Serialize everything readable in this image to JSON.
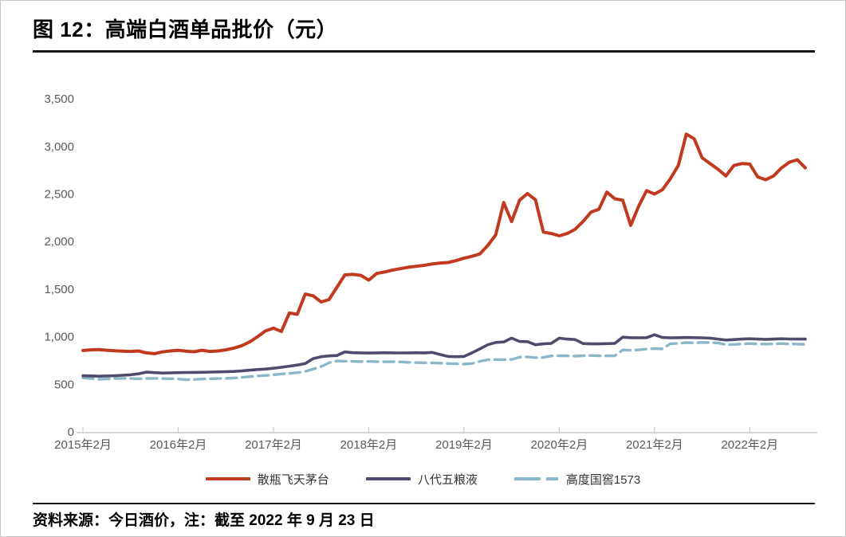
{
  "figure": {
    "title": "图 12：高端白酒单品批价（元）",
    "source_note": "资料来源：今日酒价，注：截至 2022 年 9 月 23 日"
  },
  "chart_data": {
    "type": "line",
    "title": "高端白酒单品批价（元）",
    "xlabel": "",
    "ylabel": "",
    "ylim": [
      0,
      3500
    ],
    "y_ticks": [
      0,
      500,
      1000,
      1500,
      2000,
      2500,
      3000,
      3500
    ],
    "x_tick_labels": [
      "2015年2月",
      "2016年2月",
      "2017年2月",
      "2018年2月",
      "2019年2月",
      "2020年2月",
      "2021年2月",
      "2022年2月"
    ],
    "x_start": "2015-02",
    "x_end": "2022-09",
    "x_frequency": "monthly",
    "grid": false,
    "legend_position": "bottom",
    "axis_text_color": "#595959",
    "axis_line_color": "#c9c9c9",
    "series": [
      {
        "name": "散瓶飞天茅台",
        "color": "#c13a20",
        "style": "solid",
        "values": [
          855,
          862,
          865,
          858,
          852,
          848,
          845,
          850,
          830,
          822,
          840,
          850,
          858,
          848,
          842,
          858,
          845,
          850,
          862,
          880,
          905,
          945,
          1000,
          1060,
          1090,
          1055,
          1250,
          1235,
          1448,
          1430,
          1365,
          1390,
          1520,
          1650,
          1655,
          1645,
          1595,
          1665,
          1680,
          1700,
          1715,
          1730,
          1740,
          1750,
          1765,
          1775,
          1780,
          1800,
          1825,
          1845,
          1870,
          1960,
          2070,
          2410,
          2210,
          2435,
          2505,
          2440,
          2100,
          2085,
          2060,
          2085,
          2130,
          2210,
          2310,
          2340,
          2520,
          2450,
          2435,
          2170,
          2370,
          2535,
          2500,
          2545,
          2660,
          2800,
          3130,
          3080,
          2880,
          2820,
          2760,
          2690,
          2800,
          2820,
          2815,
          2680,
          2650,
          2690,
          2775,
          2835,
          2860,
          2775
        ]
      },
      {
        "name": "八代五粮液",
        "color": "#4d4c6d",
        "style": "solid",
        "values": [
          590,
          588,
          585,
          587,
          590,
          595,
          600,
          610,
          628,
          622,
          618,
          620,
          622,
          624,
          625,
          626,
          628,
          630,
          632,
          635,
          640,
          648,
          655,
          660,
          668,
          678,
          690,
          702,
          718,
          770,
          790,
          798,
          802,
          840,
          832,
          830,
          828,
          830,
          832,
          830,
          829,
          830,
          832,
          830,
          835,
          812,
          792,
          790,
          792,
          830,
          872,
          915,
          940,
          945,
          985,
          950,
          948,
          915,
          925,
          930,
          985,
          975,
          970,
          928,
          925,
          925,
          927,
          930,
          995,
          990,
          988,
          990,
          1020,
          992,
          988,
          990,
          992,
          990,
          988,
          985,
          975,
          965,
          970,
          975,
          978,
          975,
          972,
          975,
          978,
          976,
          975,
          975
        ]
      },
      {
        "name": "高度国窖1573",
        "color": "#8cb7c9",
        "style": "dashed",
        "values": [
          568,
          560,
          553,
          555,
          560,
          562,
          560,
          558,
          560,
          562,
          560,
          558,
          556,
          548,
          550,
          555,
          558,
          560,
          562,
          565,
          573,
          580,
          588,
          593,
          600,
          608,
          615,
          622,
          635,
          660,
          686,
          725,
          745,
          742,
          740,
          738,
          740,
          738,
          736,
          737,
          735,
          730,
          728,
          726,
          725,
          722,
          718,
          715,
          712,
          718,
          740,
          758,
          760,
          758,
          760,
          785,
          788,
          780,
          782,
          798,
          800,
          798,
          796,
          800,
          802,
          800,
          798,
          800,
          860,
          858,
          862,
          870,
          875,
          872,
          926,
          930,
          938,
          935,
          940,
          938,
          935,
          915,
          918,
          925,
          928,
          925,
          922,
          925,
          928,
          925,
          922,
          920
        ]
      }
    ]
  }
}
